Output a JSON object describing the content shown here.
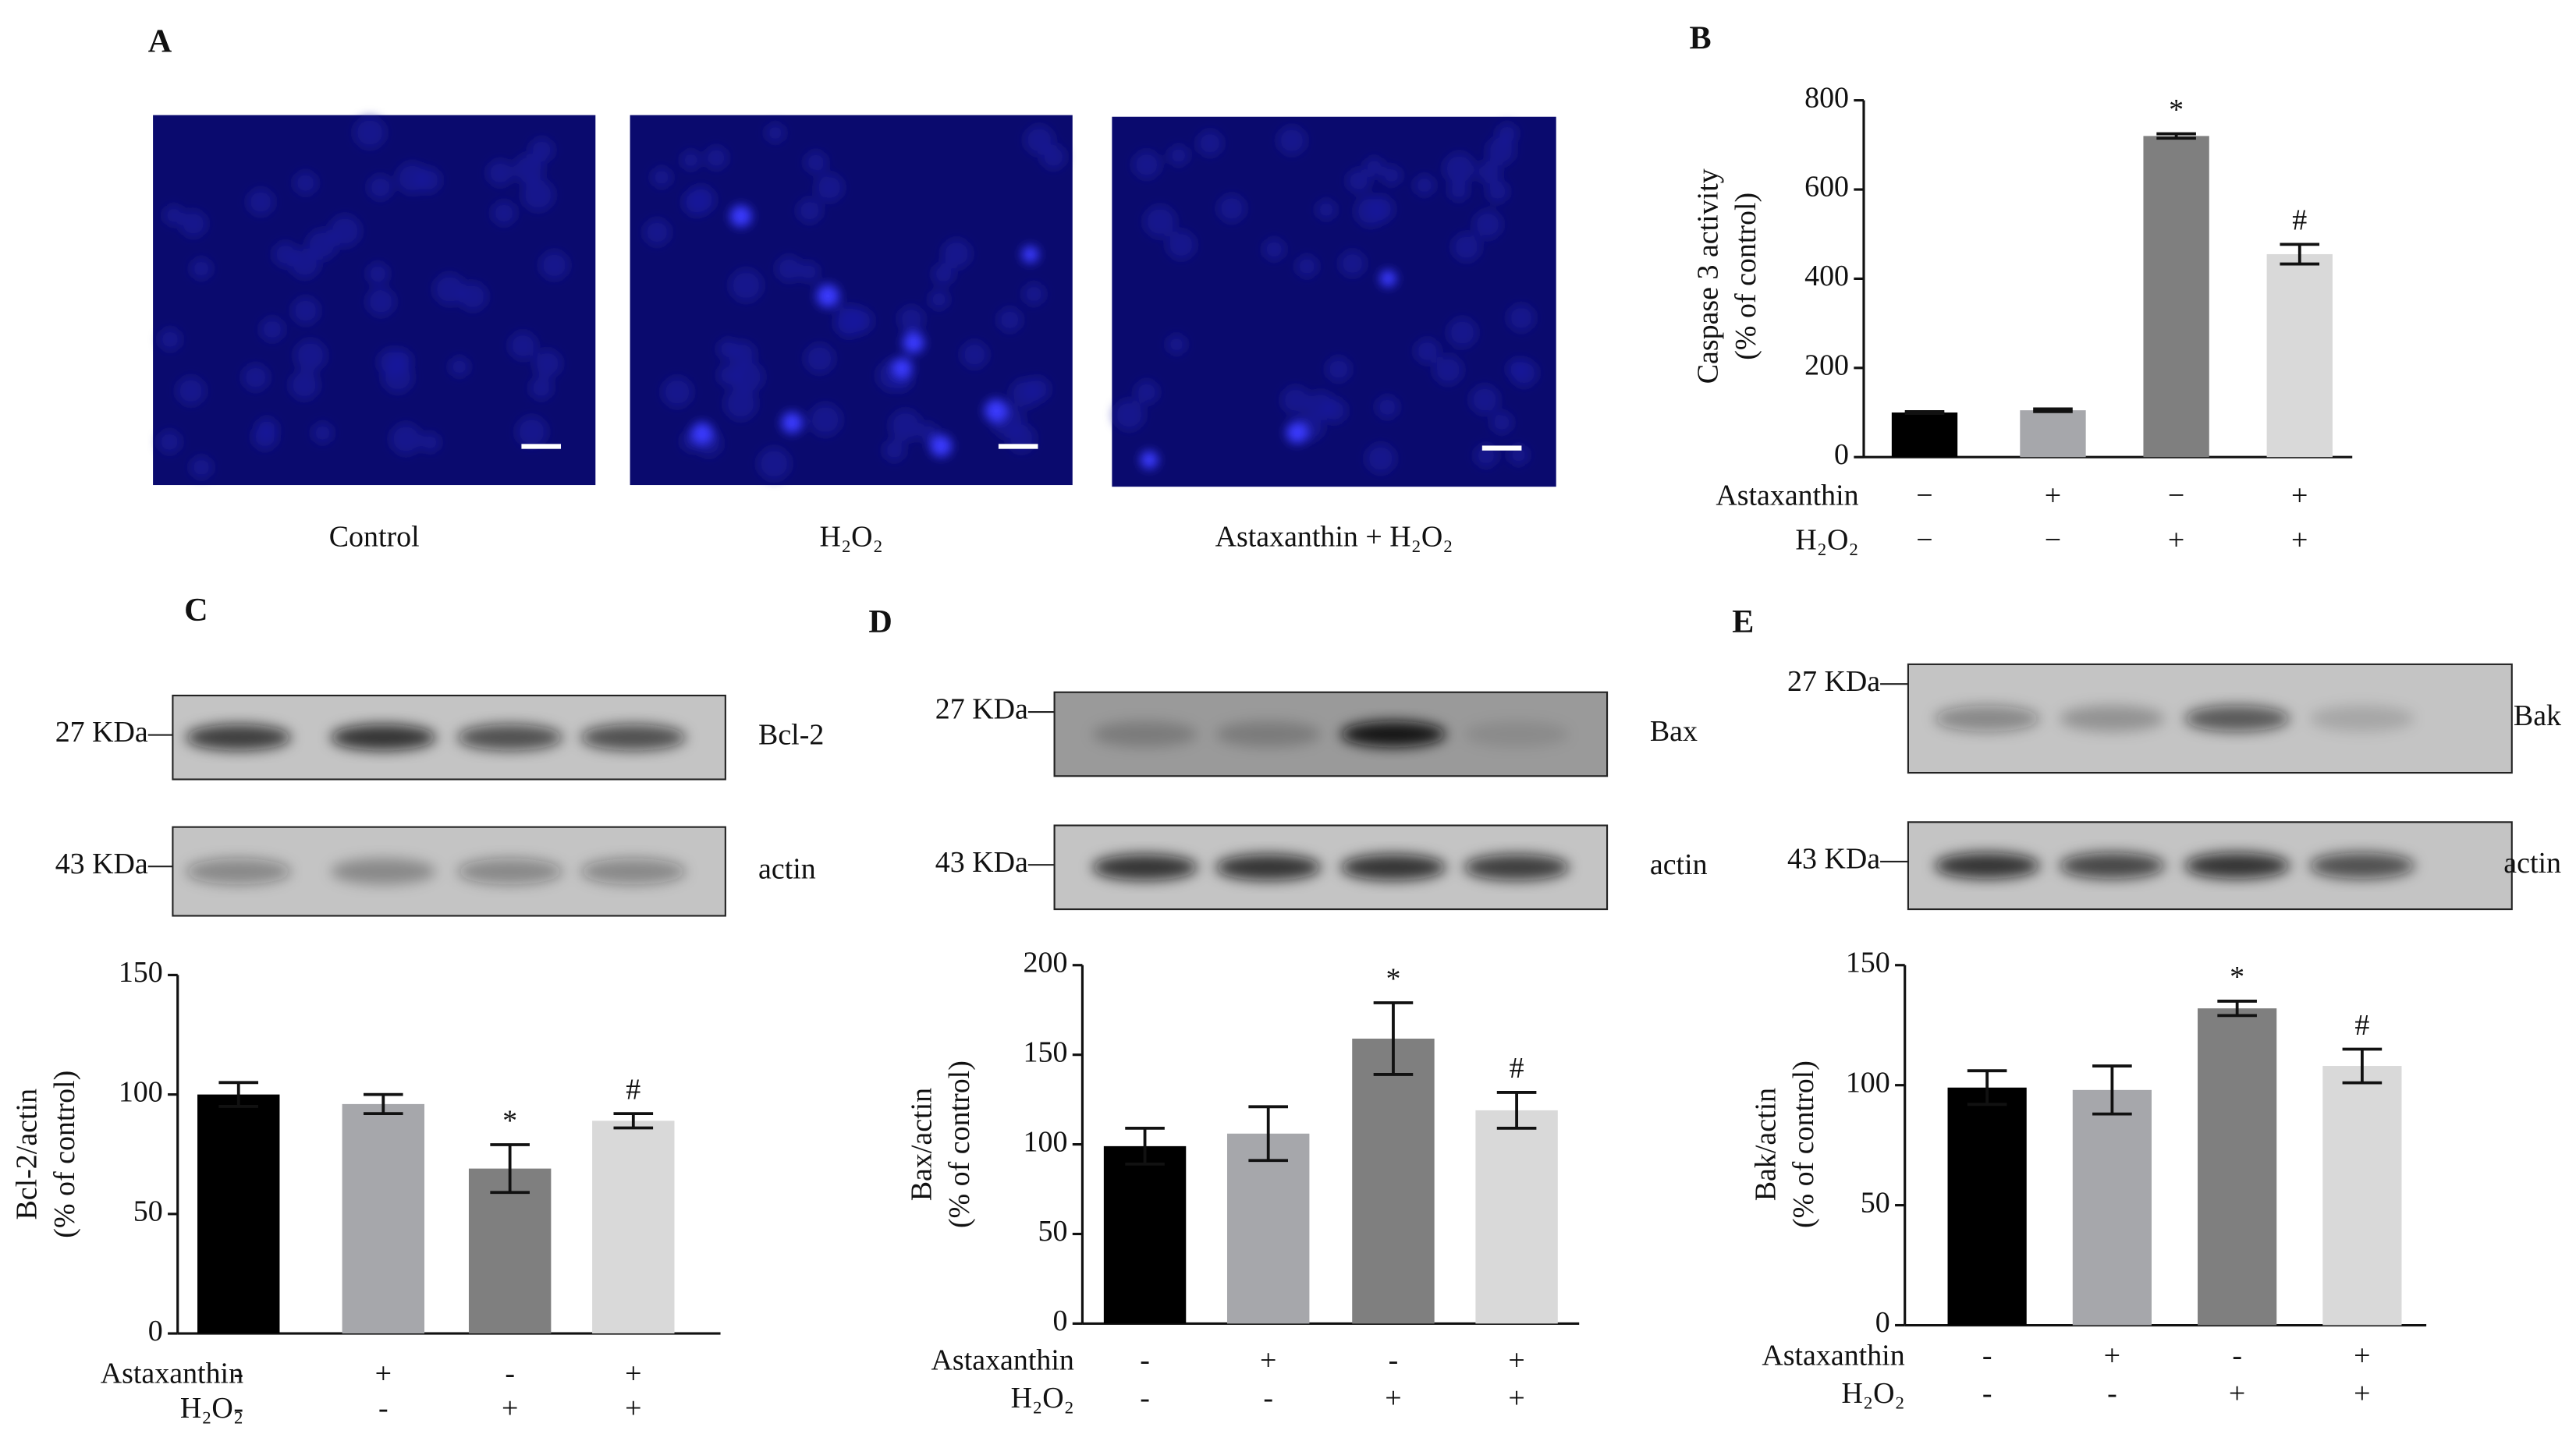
{
  "panel_a": {
    "panel_label": "A",
    "captions": [
      "Control",
      "H₂O₂",
      "Astaxanthin  + H₂O₂"
    ]
  },
  "blots": [
    {
      "rows": [
        {
          "marker": "27 KDa",
          "protein": "Bcl-2"
        },
        {
          "marker": "43 KDa",
          "protein": "actin"
        }
      ]
    },
    {
      "rows": [
        {
          "marker": "27 KDa",
          "protein": "Bax"
        },
        {
          "marker": "43 KDa",
          "protein": "actin"
        }
      ]
    },
    {
      "rows": [
        {
          "marker": "27 KDa",
          "protein": "Bak"
        },
        {
          "marker": "43 KDa",
          "protein": "actin"
        }
      ]
    }
  ],
  "chart_data": [
    {
      "type": "bar",
      "panel_label": "B",
      "ylabel": [
        "Caspase 3 activity",
        "(% of control)"
      ],
      "values": [
        100,
        105,
        720,
        455
      ],
      "errors": [
        2,
        3,
        5,
        22
      ],
      "annotations": [
        null,
        null,
        "*",
        "#"
      ],
      "colors": [
        "#000000",
        "#a6a7ab",
        "#7f7f7f",
        "#d9d9d9"
      ],
      "ylim": [
        0,
        800
      ],
      "yticks": [
        0,
        200,
        400,
        600,
        800
      ],
      "conditions": [
        {
          "name": "Astaxanthin",
          "values": [
            "−",
            "+",
            "−",
            "+"
          ]
        },
        {
          "name": "H₂O₂",
          "values": [
            "−",
            "−",
            "+",
            "+"
          ]
        }
      ]
    },
    {
      "type": "bar",
      "panel_label": "C",
      "ylabel": [
        "Bcl-2/actin",
        "(% of control)"
      ],
      "values": [
        100,
        96,
        69,
        89
      ],
      "errors": [
        5,
        4,
        10,
        3
      ],
      "annotations": [
        null,
        null,
        "*",
        "#"
      ],
      "colors": [
        "#000000",
        "#a6a7ab",
        "#7f7f7f",
        "#d9d9d9"
      ],
      "ylim": [
        0,
        150
      ],
      "yticks": [
        0,
        50,
        100,
        150
      ],
      "conditions": [
        {
          "name": "Astaxanthin",
          "values": [
            "-",
            "+",
            "-",
            "+"
          ]
        },
        {
          "name": "H₂O₂",
          "values": [
            "-",
            "-",
            "+",
            "+"
          ]
        }
      ]
    },
    {
      "type": "bar",
      "panel_label": "D",
      "ylabel": [
        "Bax/actin",
        "(% of control)"
      ],
      "values": [
        99,
        106,
        159,
        119
      ],
      "errors": [
        10,
        15,
        20,
        10
      ],
      "annotations": [
        null,
        null,
        "*",
        "#"
      ],
      "colors": [
        "#000000",
        "#a6a7ab",
        "#7f7f7f",
        "#d9d9d9"
      ],
      "ylim": [
        0,
        200
      ],
      "yticks": [
        0,
        50,
        100,
        150,
        200
      ],
      "conditions": [
        {
          "name": "Astaxanthin",
          "values": [
            "-",
            "+",
            "-",
            "+"
          ]
        },
        {
          "name": "H₂O₂",
          "values": [
            "-",
            "-",
            "+",
            "+"
          ]
        }
      ]
    },
    {
      "type": "bar",
      "panel_label": "E",
      "ylabel": [
        "Bak/actin",
        "(% of control)"
      ],
      "values": [
        99,
        98,
        132,
        108
      ],
      "errors": [
        7,
        10,
        3,
        7
      ],
      "annotations": [
        null,
        null,
        "*",
        "#"
      ],
      "colors": [
        "#000000",
        "#a6a7ab",
        "#7f7f7f",
        "#d9d9d9"
      ],
      "ylim": [
        0,
        150
      ],
      "yticks": [
        0,
        50,
        100,
        150
      ],
      "conditions": [
        {
          "name": "Astaxanthin",
          "values": [
            "-",
            "+",
            "-",
            "+"
          ]
        },
        {
          "name": "H₂O₂",
          "values": [
            "-",
            "-",
            "+",
            "+"
          ]
        }
      ]
    }
  ]
}
